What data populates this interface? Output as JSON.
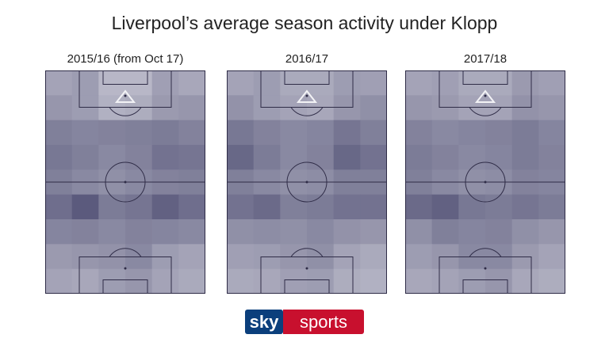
{
  "title": "Liverpool’s average season activity under Klopp",
  "logo": {
    "part1": "sky",
    "part2": "sports",
    "blue": "#0b3f7c",
    "red": "#c8102e"
  },
  "colors": {
    "low": "#d2d2dc",
    "high": "#4e4d72",
    "lines": "#2f2c47"
  },
  "chart_data": [
    {
      "type": "heatmap",
      "title": "2015/16 (from Oct 17)",
      "rows": 9,
      "cols": 6,
      "values": [
        [
          0.35,
          0.4,
          0.2,
          0.2,
          0.38,
          0.32
        ],
        [
          0.45,
          0.4,
          0.25,
          0.28,
          0.42,
          0.45
        ],
        [
          0.62,
          0.58,
          0.6,
          0.62,
          0.65,
          0.6
        ],
        [
          0.68,
          0.62,
          0.55,
          0.6,
          0.72,
          0.7
        ],
        [
          0.62,
          0.55,
          0.5,
          0.55,
          0.6,
          0.62
        ],
        [
          0.75,
          0.9,
          0.65,
          0.7,
          0.85,
          0.75
        ],
        [
          0.58,
          0.6,
          0.55,
          0.6,
          0.58,
          0.55
        ],
        [
          0.42,
          0.45,
          0.48,
          0.55,
          0.4,
          0.35
        ],
        [
          0.35,
          0.32,
          0.4,
          0.45,
          0.35,
          0.3
        ]
      ]
    },
    {
      "type": "heatmap",
      "title": "2016/17",
      "rows": 9,
      "cols": 6,
      "values": [
        [
          0.35,
          0.4,
          0.3,
          0.3,
          0.4,
          0.38
        ],
        [
          0.48,
          0.4,
          0.35,
          0.32,
          0.45,
          0.5
        ],
        [
          0.68,
          0.6,
          0.55,
          0.58,
          0.7,
          0.62
        ],
        [
          0.8,
          0.65,
          0.55,
          0.6,
          0.8,
          0.72
        ],
        [
          0.62,
          0.55,
          0.5,
          0.52,
          0.62,
          0.62
        ],
        [
          0.72,
          0.78,
          0.62,
          0.65,
          0.72,
          0.72
        ],
        [
          0.5,
          0.52,
          0.5,
          0.55,
          0.48,
          0.45
        ],
        [
          0.38,
          0.4,
          0.45,
          0.5,
          0.35,
          0.3
        ],
        [
          0.3,
          0.32,
          0.38,
          0.4,
          0.28,
          0.25
        ]
      ]
    },
    {
      "type": "heatmap",
      "title": "2017/18",
      "rows": 9,
      "cols": 6,
      "values": [
        [
          0.35,
          0.38,
          0.3,
          0.3,
          0.42,
          0.38
        ],
        [
          0.45,
          0.42,
          0.35,
          0.35,
          0.48,
          0.45
        ],
        [
          0.6,
          0.55,
          0.58,
          0.6,
          0.65,
          0.58
        ],
        [
          0.65,
          0.6,
          0.55,
          0.58,
          0.65,
          0.6
        ],
        [
          0.62,
          0.55,
          0.5,
          0.52,
          0.6,
          0.58
        ],
        [
          0.78,
          0.85,
          0.68,
          0.65,
          0.7,
          0.65
        ],
        [
          0.5,
          0.62,
          0.58,
          0.6,
          0.5,
          0.45
        ],
        [
          0.4,
          0.45,
          0.55,
          0.55,
          0.42,
          0.35
        ],
        [
          0.32,
          0.35,
          0.4,
          0.45,
          0.32,
          0.28
        ]
      ]
    }
  ]
}
